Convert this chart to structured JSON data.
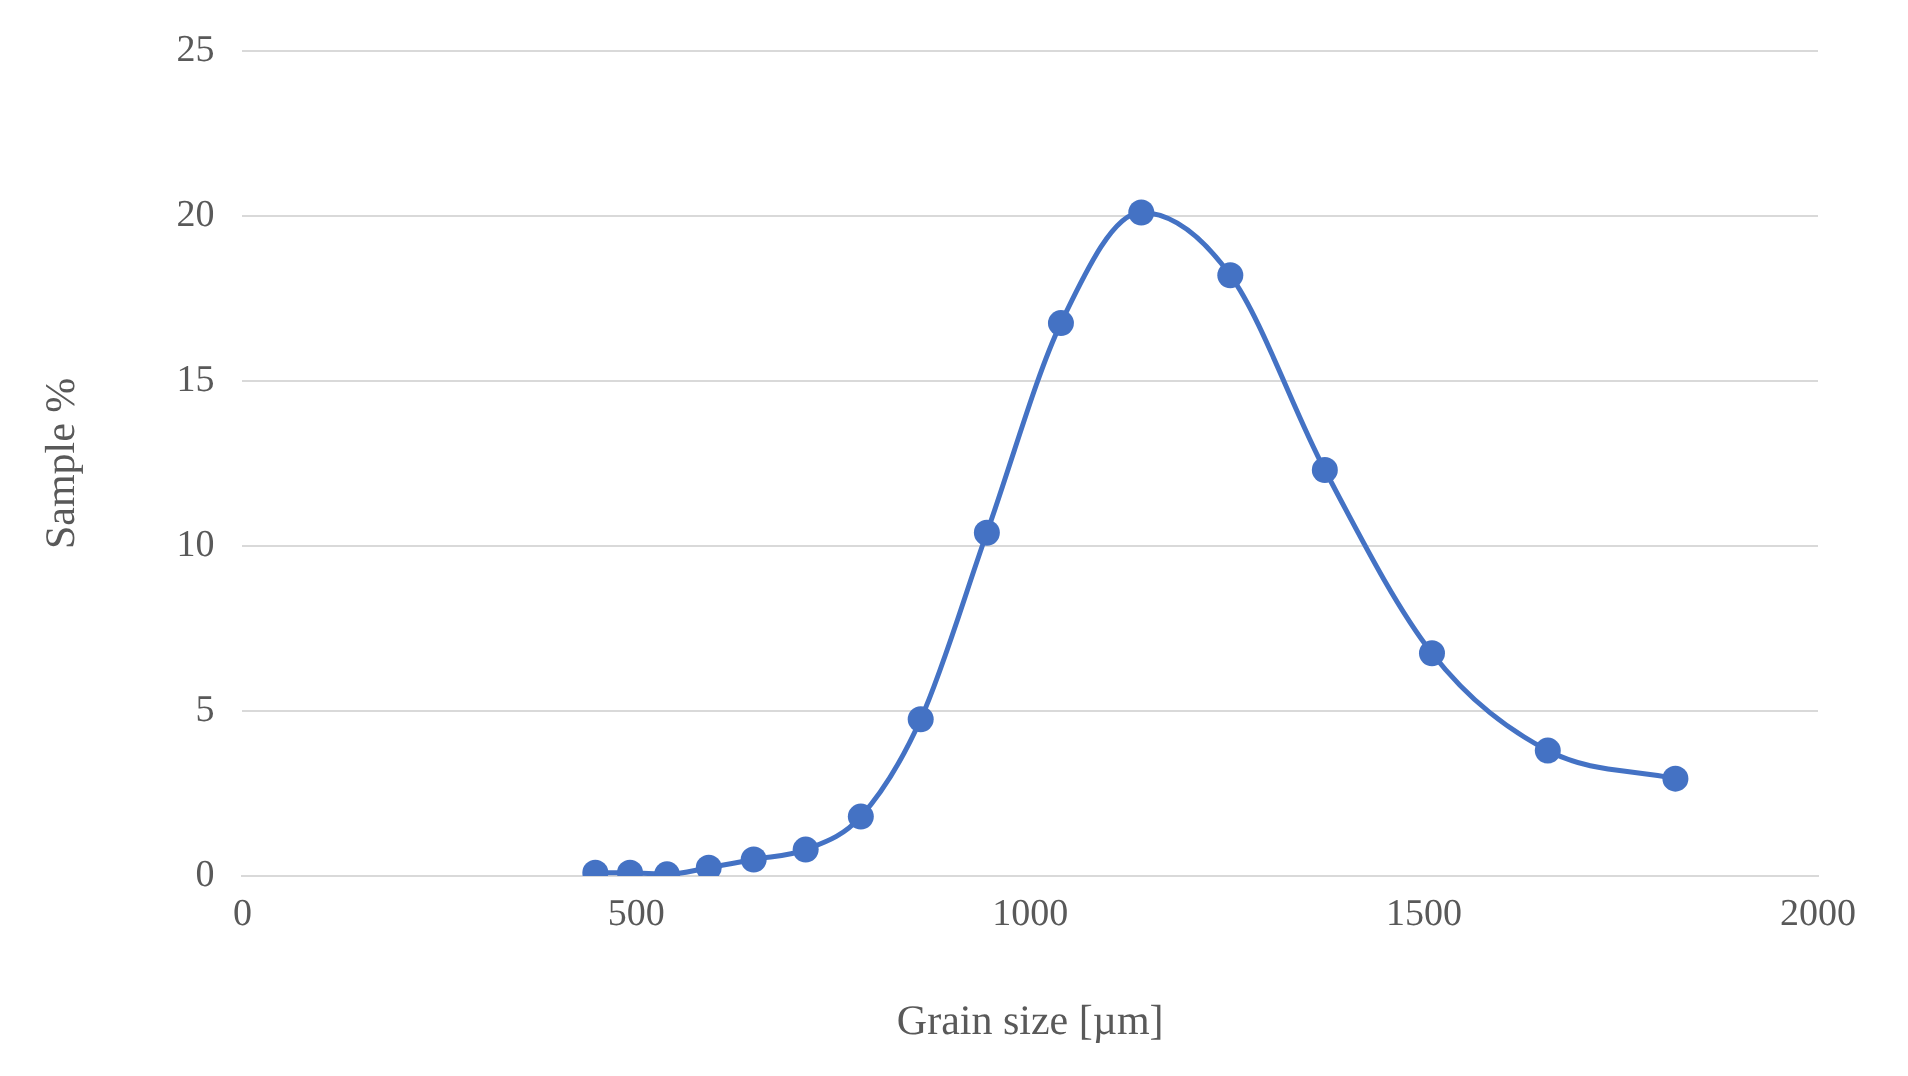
{
  "chart_data": {
    "type": "line",
    "xlabel": "Grain size [µm]",
    "ylabel": "Sample %",
    "x": [
      448,
      492,
      539,
      592,
      649,
      715,
      785,
      861,
      945,
      1039,
      1141,
      1254,
      1374,
      1510,
      1657,
      1819
    ],
    "series": [
      {
        "color": "#4472c4",
        "values": [
          0.1,
          0.1,
          0.05,
          0.25,
          0.5,
          0.8,
          1.8,
          4.75,
          10.4,
          16.75,
          20.1,
          18.2,
          12.3,
          6.75,
          3.8,
          2.95
        ]
      }
    ],
    "xlim": [
      0,
      2000
    ],
    "xticks": [
      0,
      500,
      1000,
      1500,
      2000
    ],
    "ylim": [
      0,
      25
    ],
    "yticks": [
      0,
      5,
      10,
      15,
      20,
      25
    ],
    "grid": "y",
    "marker": "circle",
    "line_style": "solid",
    "legend": false
  }
}
